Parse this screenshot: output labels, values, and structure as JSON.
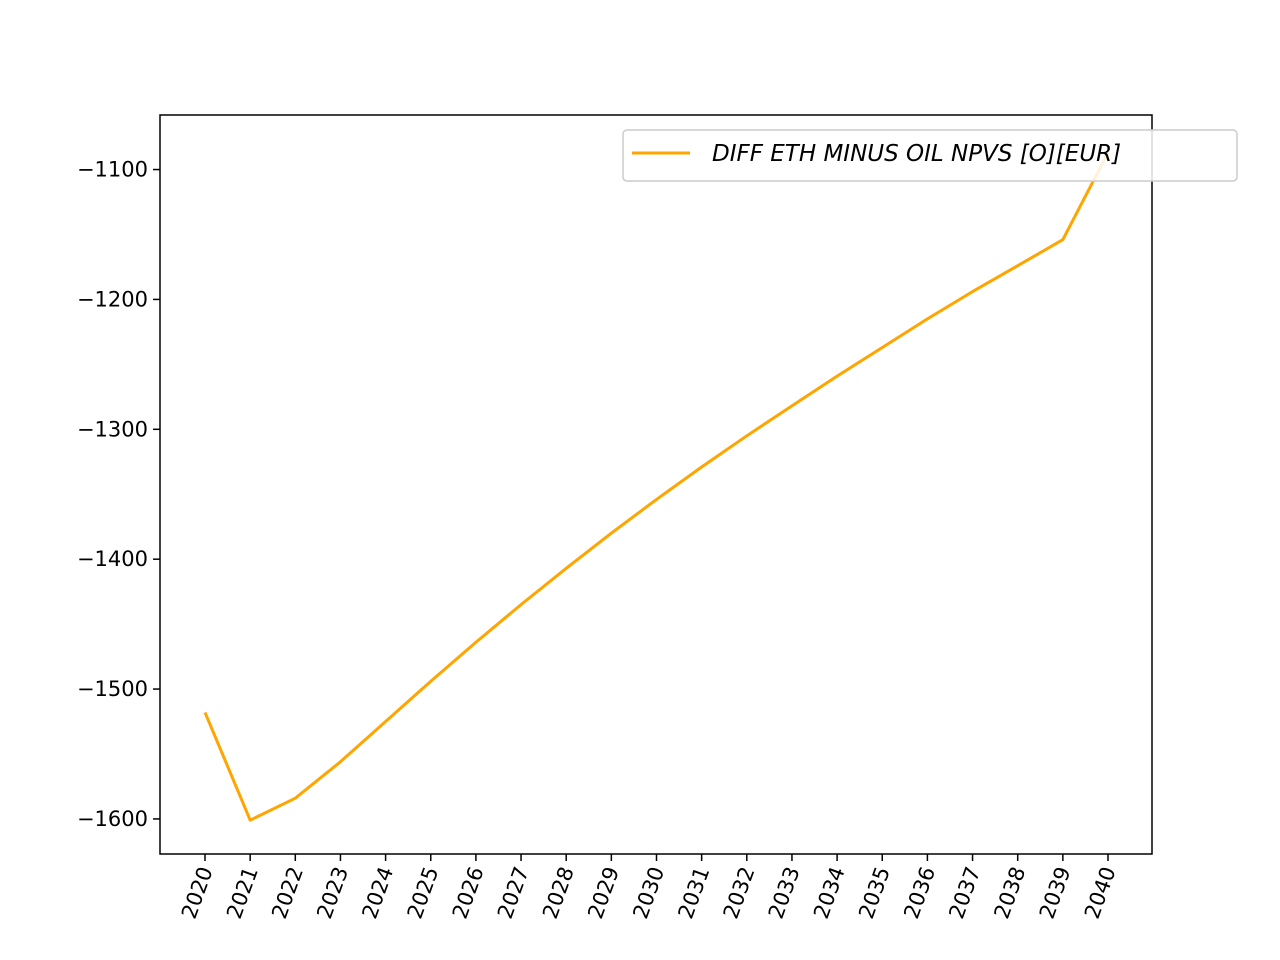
{
  "chart_data": {
    "type": "line",
    "title": "",
    "xlabel": "",
    "ylabel": "",
    "x": [
      "2020",
      "2021",
      "2022",
      "2023",
      "2024",
      "2025",
      "2026",
      "2027",
      "2028",
      "2029",
      "2030",
      "2031",
      "2032",
      "2033",
      "2034",
      "2035",
      "2036",
      "2037",
      "2038",
      "2039",
      "2040"
    ],
    "series": [
      {
        "name": "DIFF ETH MINUS OIL NPVS [O][EUR]",
        "color": "#ffa500",
        "values": [
          -1518,
          -1601,
          -1584,
          -1556,
          -1525,
          -1494,
          -1464,
          -1435,
          -1407,
          -1380,
          -1354,
          -1329,
          -1305,
          -1282,
          -1259,
          -1237,
          -1215,
          -1194,
          -1174,
          -1154,
          -1087
        ]
      }
    ],
    "yticks": [
      "−1600",
      "−1500",
      "−1400",
      "−1300",
      "−1200",
      "−1100"
    ],
    "ytick_values": [
      -1600,
      -1500,
      -1400,
      -1300,
      -1200,
      -1100
    ],
    "ylim": [
      -1627,
      -1058
    ],
    "grid": false,
    "legend_position": "top-right"
  }
}
